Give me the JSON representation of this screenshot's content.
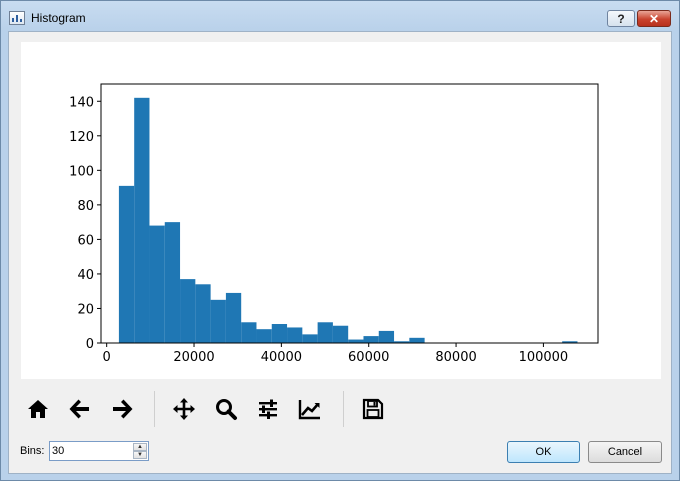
{
  "window": {
    "title": "Histogram",
    "help_label": "?",
    "close_label": "✕"
  },
  "toolbar": {
    "icons": [
      "home-icon",
      "back-icon",
      "forward-icon",
      "pan-icon",
      "zoom-icon",
      "configure-subplots-icon",
      "edit-axis-icon",
      "save-icon"
    ]
  },
  "bins": {
    "label": "Bins:",
    "value": "30"
  },
  "buttons": {
    "ok_label": "OK",
    "cancel_label": "Cancel"
  },
  "chart_data": {
    "type": "bar",
    "title": "",
    "xlabel": "",
    "ylabel": "",
    "bar_color": "#1f77b4",
    "x_range": [
      -1300,
      112500
    ],
    "y_range": [
      0,
      150
    ],
    "x_ticks": [
      0,
      20000,
      40000,
      60000,
      80000,
      100000
    ],
    "x_tick_labels": [
      "0",
      "20000",
      "40000",
      "60000",
      "80000",
      "100000"
    ],
    "y_ticks": [
      0,
      20,
      40,
      60,
      80,
      100,
      120,
      140
    ],
    "y_tick_labels": [
      "0",
      "20",
      "40",
      "60",
      "80",
      "100",
      "120",
      "140"
    ],
    "bin_start": 2800,
    "bin_width": 3500,
    "values": [
      91,
      142,
      68,
      70,
      37,
      34,
      25,
      29,
      12,
      8,
      11,
      9,
      5,
      12,
      10,
      2,
      4,
      7,
      1,
      3,
      0,
      0,
      0,
      0,
      0,
      0,
      0,
      0,
      0,
      1
    ]
  }
}
